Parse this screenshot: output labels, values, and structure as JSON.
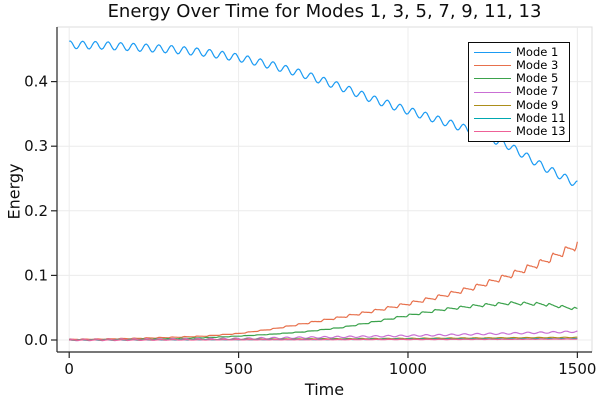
{
  "chart_data": {
    "type": "line",
    "title": "Energy Over Time for Modes 1, 3, 5, 7, 9, 11, 13",
    "xlabel": "Time",
    "ylabel": "Energy",
    "xlim": [
      -40,
      1545
    ],
    "ylim": [
      -0.019,
      0.486
    ],
    "xticks": [
      0,
      500,
      1000,
      1500
    ],
    "xtick_labels": [
      "0",
      "500",
      "1000",
      "1500"
    ],
    "yticks": [
      0.0,
      0.1,
      0.2,
      0.3,
      0.4
    ],
    "ytick_labels": [
      "0.0",
      "0.1",
      "0.2",
      "0.3",
      "0.4"
    ],
    "grid": true,
    "grid_color": "#ececec",
    "axis_color": "#262626",
    "legend": {
      "position": "top-right",
      "border_color": "#0a0a0a",
      "background": "#ffffff"
    },
    "x_samples": [
      0,
      100,
      200,
      300,
      400,
      500,
      600,
      700,
      800,
      900,
      1000,
      1100,
      1200,
      1300,
      1400,
      1500
    ],
    "series": [
      {
        "name": "Mode 1",
        "color": "#1B9BF3",
        "values": [
          0.457,
          0.456,
          0.453,
          0.45,
          0.445,
          0.437,
          0.425,
          0.41,
          0.392,
          0.372,
          0.355,
          0.339,
          0.322,
          0.3,
          0.268,
          0.241
        ],
        "osc": {
          "shape": "sin",
          "amp": 0.006,
          "period": 37.5,
          "phase": 1.2
        }
      },
      {
        "name": "Mode 3",
        "color": "#E7704C",
        "values": [
          0.001,
          0.0015,
          0.0025,
          0.004,
          0.006,
          0.01,
          0.017,
          0.026,
          0.035,
          0.045,
          0.056,
          0.068,
          0.082,
          0.1,
          0.121,
          0.147
        ],
        "osc": {
          "shape": "saw",
          "amp_rel": 0.05,
          "amp_min": 0.0006,
          "period": 37.5,
          "phase": 0.4
        }
      },
      {
        "name": "Mode 5",
        "color": "#3BA24C",
        "values": [
          0.0,
          0.0005,
          0.001,
          0.002,
          0.0035,
          0.006,
          0.009,
          0.013,
          0.019,
          0.028,
          0.038,
          0.047,
          0.053,
          0.057,
          0.0555,
          0.048
        ],
        "osc": {
          "shape": "saw",
          "amp_rel": 0.045,
          "amp_min": 0.0004,
          "period": 37.5,
          "phase": 2.1
        }
      },
      {
        "name": "Mode 7",
        "color": "#C96FD4",
        "values": [
          0.0,
          0.0002,
          0.0005,
          0.001,
          0.0015,
          0.002,
          0.003,
          0.0038,
          0.0047,
          0.0056,
          0.0066,
          0.0077,
          0.009,
          0.0102,
          0.0115,
          0.013
        ],
        "osc": {
          "shape": "sin",
          "amp": 0.0012,
          "period": 37.5,
          "phase": 0.9
        }
      },
      {
        "name": "Mode 9",
        "color": "#AC8E1A",
        "values": [
          0.0,
          0.0002,
          0.0003,
          0.0005,
          0.0007,
          0.001,
          0.0013,
          0.0016,
          0.0019,
          0.0022,
          0.0025,
          0.0028,
          0.0031,
          0.0034,
          0.0037,
          0.004
        ],
        "osc": {
          "shape": "sin",
          "amp": 0.0004,
          "period": 37.5,
          "phase": 1.7
        }
      },
      {
        "name": "Mode 11",
        "color": "#00A8B0",
        "values": [
          0.0,
          0.0001,
          0.0002,
          0.0003,
          0.0004,
          0.0005,
          0.0007,
          0.0008,
          0.001,
          0.0011,
          0.0013,
          0.0014,
          0.0016,
          0.0017,
          0.0019,
          0.002
        ],
        "osc": {
          "shape": "sin",
          "amp": 0.0003,
          "period": 37.5,
          "phase": 2.6
        }
      },
      {
        "name": "Mode 13",
        "color": "#EE6197",
        "values": [
          0.0,
          0.0001,
          0.0001,
          0.0002,
          0.0003,
          0.0004,
          0.0004,
          0.0005,
          0.0006,
          0.0007,
          0.0008,
          0.0009,
          0.001,
          0.0011,
          0.0013,
          0.0015
        ],
        "osc": {
          "shape": "sin",
          "amp": 0.00025,
          "period": 37.5,
          "phase": 0.2
        }
      }
    ]
  }
}
